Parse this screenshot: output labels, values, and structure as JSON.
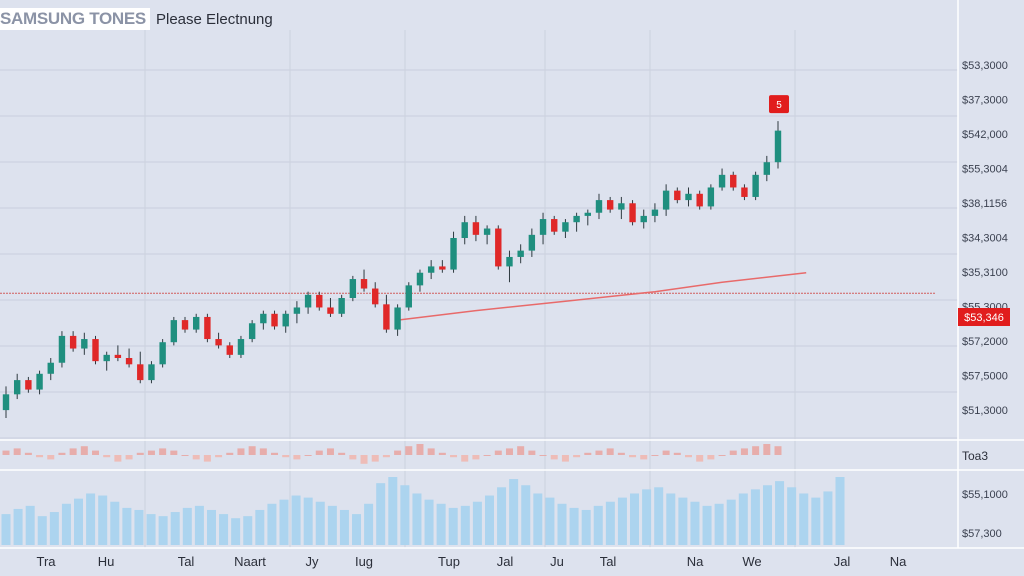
{
  "header": {
    "title": "SAMSUNG TONES",
    "subtitle": "Please Electnung"
  },
  "colors": {
    "up": "#1f8f7f",
    "down": "#e02828",
    "ma": "#e86a6a",
    "resistance": "#d25c5c",
    "volume": "#a9d3ee",
    "background": "#dde2ee"
  },
  "chart_data": {
    "type": "candlestick",
    "price_axis_labels": [
      "$53,3000",
      "$37,3000",
      "$542,000",
      "$55,3004",
      "$38,1156",
      "$34,3004",
      "$35,3100",
      "$55,3000",
      "$57,2000",
      "$57,5000",
      "$51,3000"
    ],
    "current_price_label": "$53,346",
    "current_price_marker": "5",
    "oscillator_label": "Toa3",
    "volume_axis_labels": [
      "$55,1000",
      "$57,300"
    ],
    "x_tick_labels": [
      "Tra",
      "Hu",
      "Tal",
      "Naart",
      "Jy",
      "Iug",
      "Tup",
      "Jal",
      "Ju",
      "Tal",
      "Na",
      "We",
      "Jal",
      "Na"
    ],
    "price_range": [
      40,
      230
    ],
    "resistance_level": 119,
    "candles": [
      {
        "o": 45,
        "h": 60,
        "l": 40,
        "c": 55
      },
      {
        "o": 55,
        "h": 68,
        "l": 52,
        "c": 64
      },
      {
        "o": 64,
        "h": 66,
        "l": 56,
        "c": 58
      },
      {
        "o": 58,
        "h": 70,
        "l": 55,
        "c": 68
      },
      {
        "o": 68,
        "h": 78,
        "l": 64,
        "c": 75
      },
      {
        "o": 75,
        "h": 95,
        "l": 72,
        "c": 92
      },
      {
        "o": 92,
        "h": 95,
        "l": 82,
        "c": 84
      },
      {
        "o": 84,
        "h": 94,
        "l": 80,
        "c": 90
      },
      {
        "o": 90,
        "h": 92,
        "l": 74,
        "c": 76
      },
      {
        "o": 76,
        "h": 82,
        "l": 70,
        "c": 80
      },
      {
        "o": 80,
        "h": 86,
        "l": 76,
        "c": 78
      },
      {
        "o": 78,
        "h": 84,
        "l": 72,
        "c": 74
      },
      {
        "o": 74,
        "h": 82,
        "l": 62,
        "c": 64
      },
      {
        "o": 64,
        "h": 76,
        "l": 62,
        "c": 74
      },
      {
        "o": 74,
        "h": 90,
        "l": 72,
        "c": 88
      },
      {
        "o": 88,
        "h": 104,
        "l": 86,
        "c": 102
      },
      {
        "o": 102,
        "h": 104,
        "l": 94,
        "c": 96
      },
      {
        "o": 96,
        "h": 106,
        "l": 94,
        "c": 104
      },
      {
        "o": 104,
        "h": 106,
        "l": 88,
        "c": 90
      },
      {
        "o": 90,
        "h": 94,
        "l": 84,
        "c": 86
      },
      {
        "o": 86,
        "h": 88,
        "l": 78,
        "c": 80
      },
      {
        "o": 80,
        "h": 92,
        "l": 78,
        "c": 90
      },
      {
        "o": 90,
        "h": 102,
        "l": 88,
        "c": 100
      },
      {
        "o": 100,
        "h": 108,
        "l": 96,
        "c": 106
      },
      {
        "o": 106,
        "h": 108,
        "l": 96,
        "c": 98
      },
      {
        "o": 98,
        "h": 108,
        "l": 94,
        "c": 106
      },
      {
        "o": 106,
        "h": 114,
        "l": 100,
        "c": 110
      },
      {
        "o": 110,
        "h": 120,
        "l": 106,
        "c": 118
      },
      {
        "o": 118,
        "h": 120,
        "l": 108,
        "c": 110
      },
      {
        "o": 110,
        "h": 116,
        "l": 104,
        "c": 106
      },
      {
        "o": 106,
        "h": 118,
        "l": 104,
        "c": 116
      },
      {
        "o": 116,
        "h": 130,
        "l": 114,
        "c": 128
      },
      {
        "o": 128,
        "h": 134,
        "l": 120,
        "c": 122
      },
      {
        "o": 122,
        "h": 126,
        "l": 110,
        "c": 112
      },
      {
        "o": 112,
        "h": 118,
        "l": 94,
        "c": 96
      },
      {
        "o": 96,
        "h": 112,
        "l": 92,
        "c": 110
      },
      {
        "o": 110,
        "h": 126,
        "l": 108,
        "c": 124
      },
      {
        "o": 124,
        "h": 134,
        "l": 120,
        "c": 132
      },
      {
        "o": 132,
        "h": 140,
        "l": 128,
        "c": 136
      },
      {
        "o": 136,
        "h": 140,
        "l": 132,
        "c": 134
      },
      {
        "o": 134,
        "h": 158,
        "l": 132,
        "c": 154
      },
      {
        "o": 154,
        "h": 168,
        "l": 150,
        "c": 164
      },
      {
        "o": 164,
        "h": 168,
        "l": 152,
        "c": 156
      },
      {
        "o": 156,
        "h": 162,
        "l": 150,
        "c": 160
      },
      {
        "o": 160,
        "h": 162,
        "l": 134,
        "c": 136
      },
      {
        "o": 136,
        "h": 146,
        "l": 126,
        "c": 142
      },
      {
        "o": 142,
        "h": 150,
        "l": 138,
        "c": 146
      },
      {
        "o": 146,
        "h": 160,
        "l": 142,
        "c": 156
      },
      {
        "o": 156,
        "h": 170,
        "l": 150,
        "c": 166
      },
      {
        "o": 166,
        "h": 168,
        "l": 156,
        "c": 158
      },
      {
        "o": 158,
        "h": 166,
        "l": 154,
        "c": 164
      },
      {
        "o": 164,
        "h": 170,
        "l": 158,
        "c": 168
      },
      {
        "o": 168,
        "h": 172,
        "l": 162,
        "c": 170
      },
      {
        "o": 170,
        "h": 182,
        "l": 166,
        "c": 178
      },
      {
        "o": 178,
        "h": 180,
        "l": 170,
        "c": 172
      },
      {
        "o": 172,
        "h": 180,
        "l": 166,
        "c": 176
      },
      {
        "o": 176,
        "h": 178,
        "l": 162,
        "c": 164
      },
      {
        "o": 164,
        "h": 172,
        "l": 160,
        "c": 168
      },
      {
        "o": 168,
        "h": 176,
        "l": 164,
        "c": 172
      },
      {
        "o": 172,
        "h": 188,
        "l": 168,
        "c": 184
      },
      {
        "o": 184,
        "h": 186,
        "l": 176,
        "c": 178
      },
      {
        "o": 178,
        "h": 186,
        "l": 174,
        "c": 182
      },
      {
        "o": 182,
        "h": 184,
        "l": 172,
        "c": 174
      },
      {
        "o": 174,
        "h": 188,
        "l": 172,
        "c": 186
      },
      {
        "o": 186,
        "h": 198,
        "l": 184,
        "c": 194
      },
      {
        "o": 194,
        "h": 196,
        "l": 184,
        "c": 186
      },
      {
        "o": 186,
        "h": 188,
        "l": 178,
        "c": 180
      },
      {
        "o": 180,
        "h": 196,
        "l": 178,
        "c": 194
      },
      {
        "o": 194,
        "h": 206,
        "l": 190,
        "c": 202
      },
      {
        "o": 202,
        "h": 228,
        "l": 198,
        "c": 222
      }
    ],
    "moving_average": [
      {
        "i": 35,
        "v": 102
      },
      {
        "i": 42,
        "v": 108
      },
      {
        "i": 50,
        "v": 114
      },
      {
        "i": 58,
        "v": 120
      },
      {
        "i": 64,
        "v": 126
      },
      {
        "i": 70,
        "v": 132
      }
    ],
    "oscillator": [
      2,
      3,
      1,
      -1,
      -2,
      1,
      3,
      4,
      2,
      -1,
      -3,
      -2,
      1,
      2,
      3,
      2,
      0,
      -2,
      -3,
      -1,
      1,
      3,
      4,
      3,
      1,
      -1,
      -2,
      0,
      2,
      3,
      1,
      -2,
      -4,
      -3,
      -1,
      2,
      4,
      5,
      3,
      1,
      -1,
      -3,
      -2,
      0,
      2,
      3,
      4,
      2,
      0,
      -2,
      -3,
      -1,
      1,
      2,
      3,
      1,
      -1,
      -2,
      0,
      2,
      1,
      -1,
      -3,
      -2,
      0,
      2,
      3,
      4,
      5,
      4
    ],
    "volume": [
      30,
      35,
      38,
      28,
      32,
      40,
      45,
      50,
      48,
      42,
      36,
      34,
      30,
      28,
      32,
      36,
      38,
      34,
      30,
      26,
      28,
      34,
      40,
      44,
      48,
      46,
      42,
      38,
      34,
      30,
      40,
      60,
      66,
      58,
      50,
      44,
      40,
      36,
      38,
      42,
      48,
      56,
      64,
      58,
      50,
      46,
      40,
      36,
      34,
      38,
      42,
      46,
      50,
      54,
      56,
      50,
      46,
      42,
      38,
      40,
      44,
      50,
      54,
      58,
      62,
      56,
      50,
      46,
      52,
      66
    ]
  }
}
